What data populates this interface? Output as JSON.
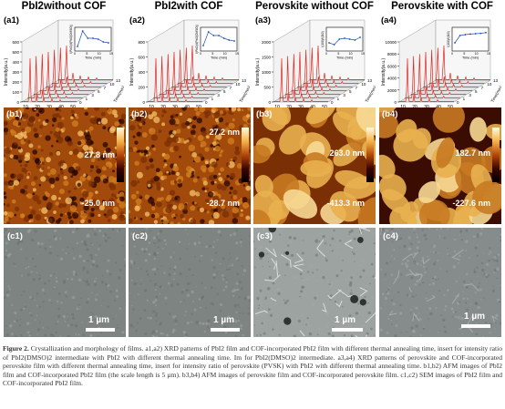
{
  "column_titles": [
    "PbI2without COF",
    "PbI2with COF",
    "Perovskite without COF",
    "Perovskite with COF"
  ],
  "xrd": [
    {
      "label": "(a1)",
      "y_axis": "Intensity(a.u.)",
      "x_axis": "2θ(degree)",
      "yticks": [
        "0",
        "100",
        "200",
        "300",
        "400",
        "500",
        "600"
      ],
      "xticks": [
        "10",
        "20",
        "30",
        "40",
        "50"
      ],
      "ztitle": "Time(min)",
      "zticks": [
        "0",
        "1",
        "3",
        "5",
        "7",
        "10",
        "13"
      ],
      "inset_y": "I(PbI2)/I(PbI2(DMSO))",
      "inset_x": "Time (min)",
      "inset_ticks": [
        "0",
        "5",
        "10",
        "15"
      ],
      "inset_points": [
        0.1,
        0.95,
        0.55,
        0.55,
        0.5,
        0.35,
        0.3
      ]
    },
    {
      "label": "(a2)",
      "y_axis": "Intensity(a.u.)",
      "x_axis": "2θ(degree)",
      "yticks": [
        "0",
        "200",
        "400",
        "600",
        "800"
      ],
      "xticks": [
        "10",
        "20",
        "30",
        "40",
        "50"
      ],
      "ztitle": "Time(min)",
      "zticks": [
        "0",
        "1",
        "3",
        "5",
        "7",
        "10",
        "13"
      ],
      "inset_y": "I(PbI2)/I(PbI2(DMSO))",
      "inset_x": "Time (min)",
      "inset_ticks": [
        "0",
        "5",
        "10",
        "15"
      ],
      "inset_points": [
        0.15,
        0.9,
        0.7,
        0.7,
        0.55,
        0.45,
        0.4
      ]
    },
    {
      "label": "(a3)",
      "y_axis": "Intensity(a.u.)",
      "x_axis": "2θ(degree)",
      "yticks": [
        "0",
        "500",
        "1000",
        "1500",
        "2000"
      ],
      "xticks": [
        "10",
        "20",
        "30",
        "40",
        "50"
      ],
      "ztitle": "Time(min)",
      "zticks": [
        "0",
        "1",
        "3",
        "5",
        "7",
        "10",
        "13"
      ],
      "inset_y": "I(100)/I(110)",
      "inset_x": "Time (min)",
      "inset_ticks": [
        "0",
        "5",
        "10",
        "15"
      ],
      "inset_points": [
        0.3,
        0.2,
        0.5,
        0.55,
        0.5,
        0.45,
        0.6
      ]
    },
    {
      "label": "(a4)",
      "y_axis": "Intensity(a.u.)",
      "x_axis": "2θ(degree)",
      "yticks": [
        "0",
        "2000",
        "4000",
        "6000",
        "8000",
        "10000"
      ],
      "xticks": [
        "10",
        "20",
        "30",
        "40",
        "50"
      ],
      "ztitle": "Time(min)",
      "zticks": [
        "0",
        "1",
        "3",
        "5",
        "7",
        "10",
        "13"
      ],
      "inset_y": "I(100)/I(110)",
      "inset_x": "Time (min)",
      "inset_ticks": [
        "0",
        "5",
        "10",
        "15"
      ],
      "inset_points": [
        0.3,
        0.7,
        0.75,
        0.78,
        0.8,
        0.82,
        0.86
      ]
    }
  ],
  "afm": [
    {
      "label": "(b1)",
      "max": "27.8 nm",
      "min": "-25.0 nm",
      "style": "fine"
    },
    {
      "label": "(b2)",
      "max": "27.2 nm",
      "min": "-28.7 nm",
      "style": "fine"
    },
    {
      "label": "(b3)",
      "max": "263.0 nm",
      "min": "-413.3 nm",
      "style": "grain"
    },
    {
      "label": "(b4)",
      "max": "182.7 nm",
      "min": "-227.6 nm",
      "style": "grain2"
    }
  ],
  "sem": [
    {
      "label": "(c1)",
      "scale": "1 µm",
      "scale_visible": true
    },
    {
      "label": "(c2)",
      "scale": "1 µm",
      "scale_visible": true
    },
    {
      "label": "(c3)",
      "scale": "1 µm",
      "scale_visible": true
    },
    {
      "label": "(c4)",
      "scale": "1 µm",
      "scale_visible": true
    }
  ],
  "caption": {
    "figure": "Figure 2.",
    "text": "Crystallization and morphology of films. a1,a2) XRD patterns of PbI2 film and COF-incorporated PbI2 film with different thermal annealing time, insert for intensity ratio of PbI2(DMSO)2 intermediate with PbI2 with different thermal annealing time. Im for PbI2(DMSO)2 intermediate. a3,a4) XRD patterns of perovskite and COF-incorporated perovskite film with different thermal annealing time, insert for intensity ratio of perovskite (PVSK) with PbI2 with different thermal annealing time. b1,b2) AFM images of PbI2 film and COF-incorporated PbI2 film (the scale length is 5 µm). b3,b4) AFM images of perovskite film and COF-incorporated perovskite film. c1,c2) SEM images of PbI2 film and COF-incorporated PbI2 film."
  }
}
